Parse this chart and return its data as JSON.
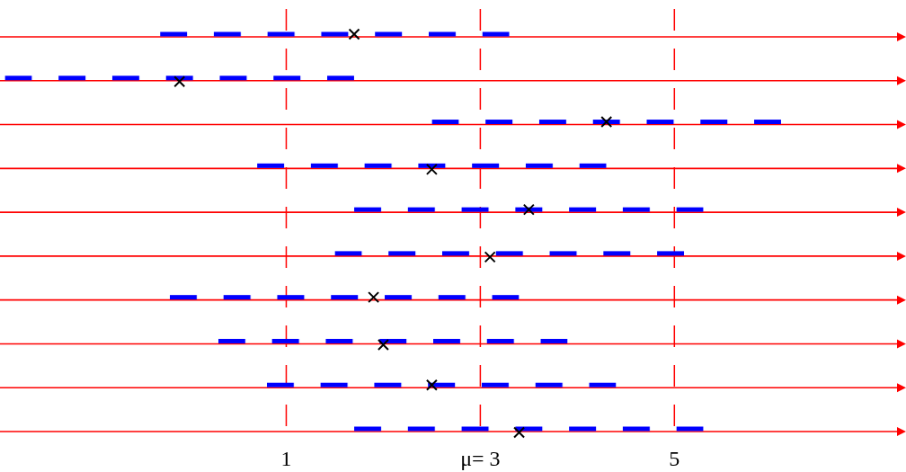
{
  "chart_data": {
    "type": "bar",
    "orientation": "horizontal",
    "categories": [
      null,
      null,
      null,
      null,
      null,
      null,
      null,
      null,
      null,
      null
    ],
    "series": [
      {
        "color": "#0000ff",
        "line_style": "dashed",
        "base": [
          -0.3,
          -1.9,
          2.5,
          0.7,
          1.7,
          1.5,
          -0.2,
          0.3,
          0.8,
          1.7
        ],
        "values": [
          3.6,
          3.6,
          3.6,
          3.6,
          3.6,
          3.6,
          3.6,
          3.6,
          3.6,
          3.6
        ]
      },
      {
        "type": "scatter",
        "color": "#000000",
        "marker": "cross",
        "values": [
          1.7,
          -0.1,
          4.3,
          2.5,
          3.5,
          3.1,
          1.9,
          2.0,
          2.5,
          3.4
        ]
      }
    ],
    "xlim": [
      -1.95,
      7.35
    ],
    "xticks": [
      1,
      {
        "value": 3,
        "label": "μ= 3"
      },
      5
    ],
    "ref_lines": [
      {
        "axis": "x",
        "value": 1,
        "label": null,
        "color": "#ff0000",
        "line_style": "dashed"
      },
      {
        "axis": "x",
        "value": 3,
        "label": null,
        "color": "#ff0000",
        "line_style": "dashed"
      },
      {
        "axis": "x",
        "value": 5,
        "label": null,
        "color": "#ff0000",
        "line_style": "dashed"
      }
    ],
    "grid": false
  }
}
